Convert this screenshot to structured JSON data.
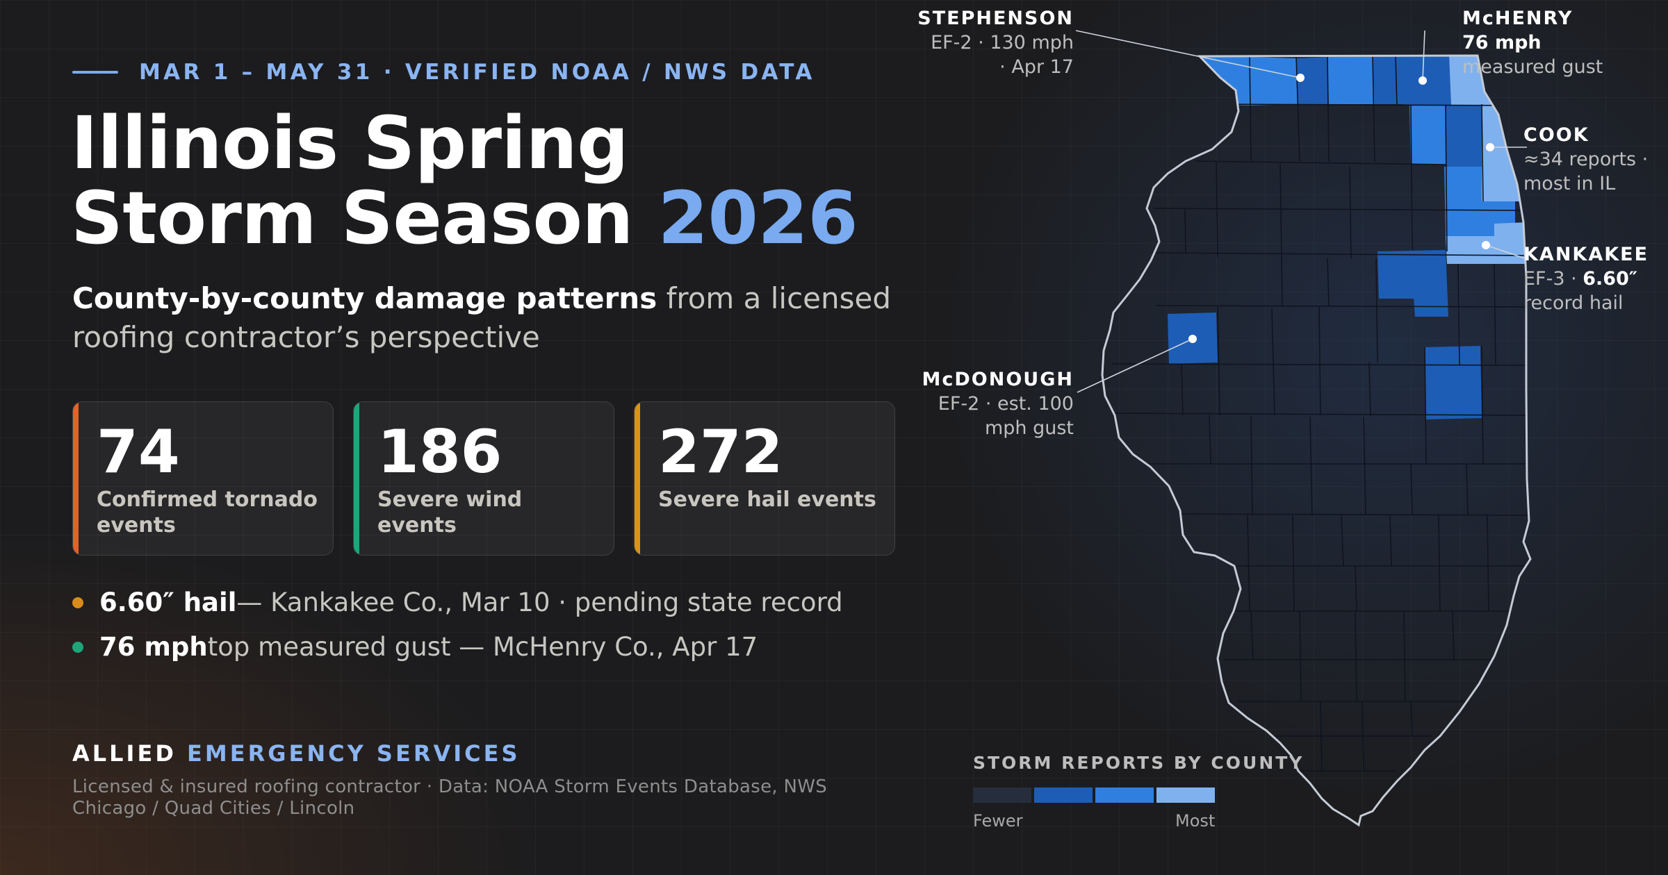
{
  "header": {
    "eyebrow": "MAR 1 – MAY 31 · VERIFIED NOAA / NWS DATA",
    "title_line1": "Illinois Spring",
    "title_line2": "Storm Season",
    "title_year": "2026",
    "subtitle_bold": "County-by-county damage patterns",
    "subtitle_rest": " from a licensed roofing contractor’s perspective"
  },
  "stats": [
    {
      "value": "74",
      "label": "Confirmed tornado events",
      "color": "#e0632a"
    },
    {
      "value": "186",
      "label": "Severe wind events",
      "color": "#1fa57a"
    },
    {
      "value": "272",
      "label": "Severe hail events",
      "color": "#d99318"
    }
  ],
  "highlights": [
    {
      "bold": "6.60″ hail",
      "rest": " — Kankakee Co., Mar 10 · pending state record",
      "color": "#d98c1a"
    },
    {
      "bold": "76 mph",
      "rest": " top measured gust — McHenry Co., Apr 17",
      "color": "#1fa57a"
    }
  ],
  "footer": {
    "brand_plain": "ALLIED ",
    "brand_accent": "EMERGENCY SERVICES",
    "note": "Licensed & insured roofing contractor · Data: NOAA Storm Events Database, NWS Chicago / Quad Cities / Lincoln"
  },
  "map": {
    "colors": {
      "base": "#262e3e",
      "dark": "#1d5db5",
      "mid": "#2f7fe0",
      "light": "#7fb1ef",
      "border": "#0f1420",
      "outline": "#c4cbd6"
    },
    "callouts": {
      "stephenson": {
        "name": "STEPHENSON",
        "lines": [
          "EF-2 · 130 mph",
          "· Apr 17"
        ]
      },
      "mchenry": {
        "name": "McHENRY",
        "bold": "76 mph",
        "line2": "measured gust"
      },
      "cook": {
        "name": "COOK",
        "lines": [
          "≈34 reports ·",
          "most in IL"
        ]
      },
      "kankakee": {
        "name": "KANKAKEE",
        "line1_plain": "EF-3 · ",
        "line1_bold": "6.60″",
        "line2": "record hail"
      },
      "mcdonough": {
        "name": "McDONOUGH",
        "lines": [
          "EF-2 · est. 100",
          "mph gust"
        ]
      }
    },
    "legend": {
      "title": "STORM REPORTS BY COUNTY",
      "min_label": "Fewer",
      "max_label": "Most",
      "swatches": [
        "#262e3e",
        "#1d5db5",
        "#2f7fe0",
        "#7fb1ef"
      ]
    }
  }
}
